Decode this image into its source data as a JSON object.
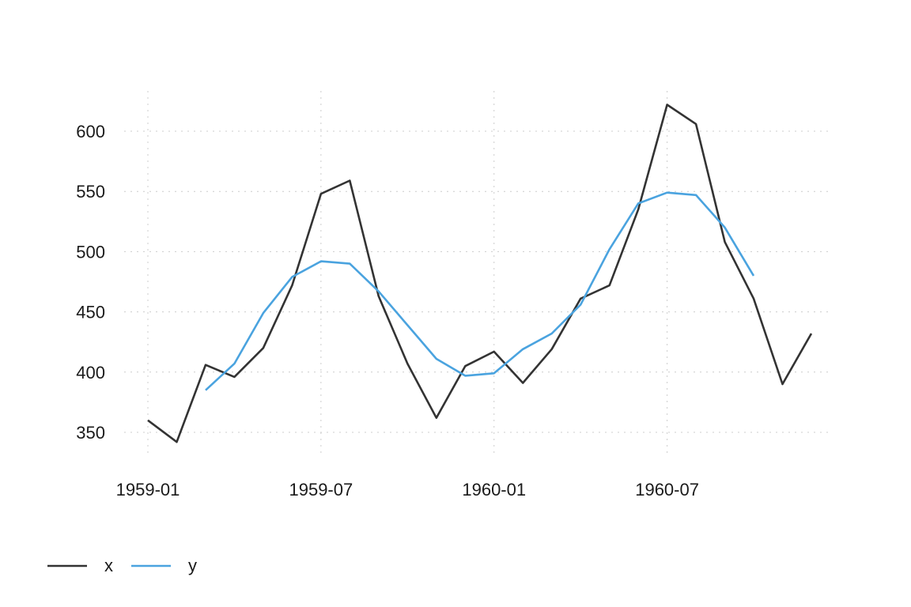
{
  "chart_data": {
    "type": "line",
    "title": "",
    "xlabel": "",
    "ylabel": "",
    "x": [
      "1959-01",
      "1959-02",
      "1959-03",
      "1959-04",
      "1959-05",
      "1959-06",
      "1959-07",
      "1959-08",
      "1959-09",
      "1959-10",
      "1959-11",
      "1959-12",
      "1960-01",
      "1960-02",
      "1960-03",
      "1960-04",
      "1960-05",
      "1960-06",
      "1960-07",
      "1960-08",
      "1960-09",
      "1960-10",
      "1960-11",
      "1960-12"
    ],
    "series": [
      {
        "name": "x",
        "color": "#333333",
        "values": [
          360,
          342,
          406,
          396,
          420,
          472,
          548,
          559,
          463,
          407,
          362,
          405,
          417,
          391,
          419,
          461,
          472,
          535,
          622,
          606,
          508,
          461,
          390,
          432
        ]
      },
      {
        "name": "y",
        "color": "#4aa3df",
        "values": [
          null,
          null,
          385,
          407,
          449,
          479,
          492,
          490,
          467,
          439,
          411,
          397,
          399,
          419,
          432,
          456,
          502,
          540,
          549,
          547,
          520,
          480,
          null,
          null
        ]
      }
    ],
    "xticks": [
      "1959-01",
      "1959-07",
      "1960-01",
      "1960-07"
    ],
    "yticks": [
      350,
      400,
      450,
      500,
      550,
      600
    ],
    "ylim": [
      320,
      635
    ],
    "grid": true,
    "legend_position": "bottom-left"
  }
}
